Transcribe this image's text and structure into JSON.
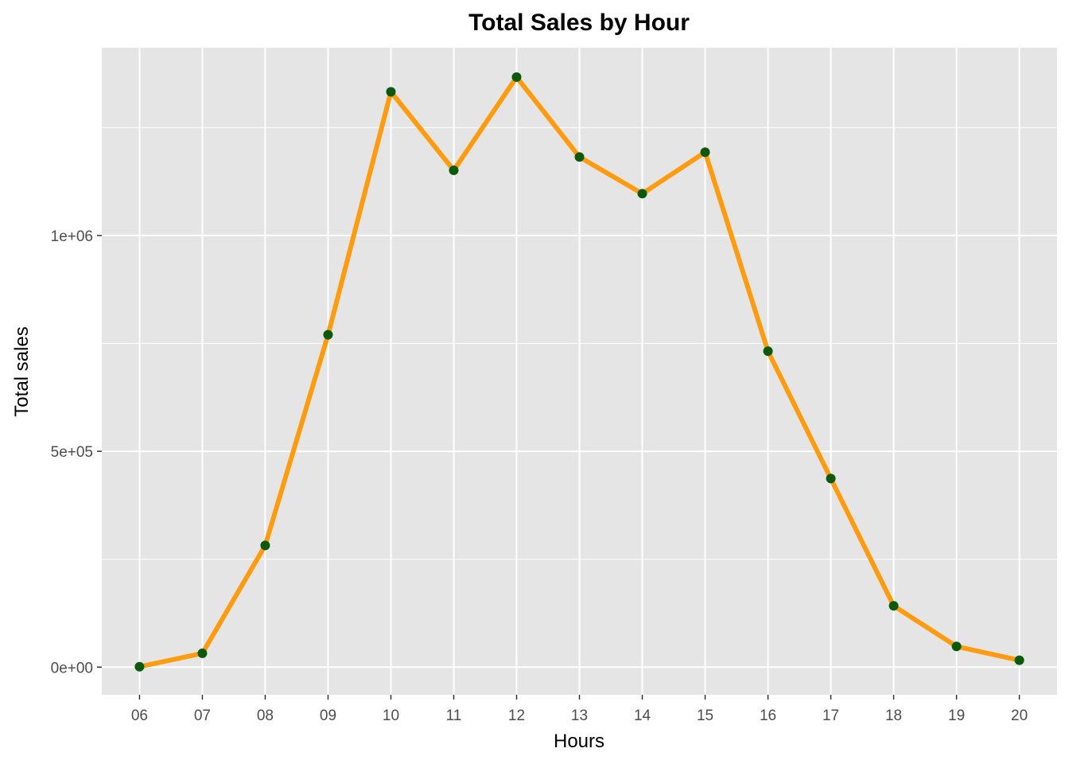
{
  "colors": {
    "panel_background": "#e5e5e5",
    "grid": "#ffffff",
    "tick": "#333333",
    "line": "#ff9b0f",
    "point": "#0b5a0b"
  },
  "chart_data": {
    "type": "line",
    "title": "Total Sales by Hour",
    "xlabel": "Hours",
    "ylabel": "Total sales",
    "categories": [
      "06",
      "07",
      "08",
      "09",
      "10",
      "11",
      "12",
      "13",
      "14",
      "15",
      "16",
      "17",
      "18",
      "19",
      "20"
    ],
    "values": [
      1000,
      32000,
      282000,
      770000,
      1333000,
      1151000,
      1367000,
      1182000,
      1097000,
      1193000,
      732000,
      437000,
      142000,
      48000,
      16000
    ],
    "y_ticks": [
      0,
      500000,
      1000000
    ],
    "y_tick_labels": [
      "0e+00",
      "5e+05",
      "1e+06"
    ],
    "ylim": [
      -64000,
      1435000
    ],
    "grid": true,
    "legend": "none"
  }
}
